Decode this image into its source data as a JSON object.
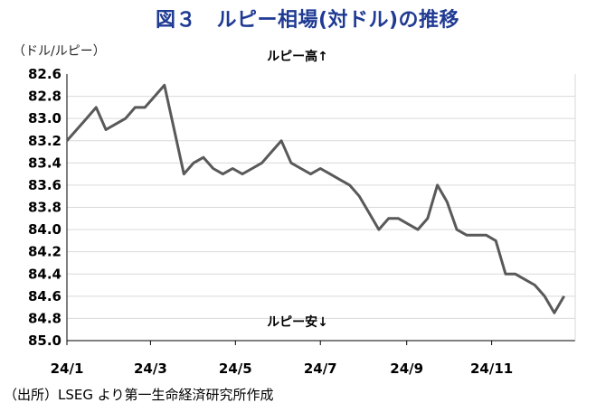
{
  "chart_data": {
    "type": "line",
    "title": "図３　ルピー相場(対ドル)の推移",
    "ylabel": "（ドル/ルピー）",
    "xlabel": "",
    "y_inverted": true,
    "ylim": [
      82.6,
      85.0
    ],
    "yticks": [
      "82.6",
      "82.8",
      "83.0",
      "83.2",
      "83.4",
      "83.6",
      "83.8",
      "84.0",
      "84.2",
      "84.4",
      "84.6",
      "84.8",
      "85.0"
    ],
    "xticks": [
      "24/1",
      "24/3",
      "24/5",
      "24/7",
      "24/9",
      "24/11"
    ],
    "grid": true,
    "annotations": {
      "top": "ルピー高↑",
      "bottom": "ルピー安↓"
    },
    "series": [
      {
        "color": "#595959",
        "x": [
          "2024-01-01",
          "2024-01-08",
          "2024-01-15",
          "2024-01-22",
          "2024-01-29",
          "2024-02-05",
          "2024-02-12",
          "2024-02-19",
          "2024-02-26",
          "2024-03-04",
          "2024-03-11",
          "2024-03-18",
          "2024-03-25",
          "2024-04-01",
          "2024-04-08",
          "2024-04-15",
          "2024-04-22",
          "2024-04-29",
          "2024-05-06",
          "2024-05-13",
          "2024-05-20",
          "2024-05-27",
          "2024-06-03",
          "2024-06-10",
          "2024-06-17",
          "2024-06-24",
          "2024-07-01",
          "2024-07-08",
          "2024-07-15",
          "2024-07-22",
          "2024-07-29",
          "2024-08-05",
          "2024-08-12",
          "2024-08-19",
          "2024-08-26",
          "2024-09-02",
          "2024-09-09",
          "2024-09-16",
          "2024-09-23",
          "2024-09-30",
          "2024-10-07",
          "2024-10-14",
          "2024-10-21",
          "2024-10-28",
          "2024-11-04",
          "2024-11-11",
          "2024-11-18",
          "2024-11-25",
          "2024-12-02",
          "2024-12-09",
          "2024-12-16",
          "2024-12-23"
        ],
        "values": [
          83.2,
          83.1,
          83.0,
          82.9,
          83.1,
          83.05,
          83.0,
          82.9,
          82.9,
          82.8,
          82.7,
          83.1,
          83.5,
          83.4,
          83.35,
          83.45,
          83.5,
          83.45,
          83.5,
          83.45,
          83.4,
          83.3,
          83.2,
          83.4,
          83.45,
          83.5,
          83.45,
          83.5,
          83.55,
          83.6,
          83.7,
          83.85,
          84.0,
          83.9,
          83.9,
          83.95,
          84.0,
          83.9,
          83.6,
          83.75,
          84.0,
          84.05,
          84.05,
          84.05,
          84.1,
          84.4,
          84.4,
          84.45,
          84.5,
          84.6,
          84.75,
          84.6
        ]
      }
    ],
    "source": "（出所）LSEG より第一生命経済研究所作成"
  }
}
